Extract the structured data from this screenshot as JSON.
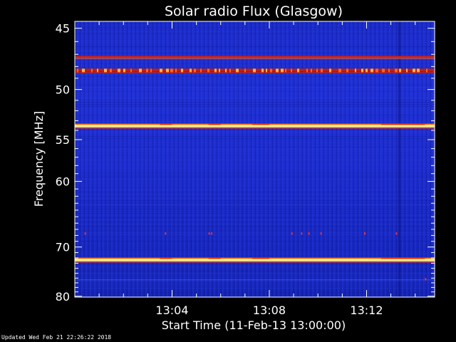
{
  "chart_data": {
    "type": "heatmap",
    "title": "Solar radio Flux (Glasgow)",
    "xlabel": "Start Time (11-Feb-13 13:00:00)",
    "ylabel": "Frequency [MHz]",
    "x_ticks": [
      "13:04",
      "13:08",
      "13:12"
    ],
    "y_ticks": [
      "45",
      "50",
      "55",
      "60",
      "70",
      "80"
    ],
    "y_scale": "reciprocal",
    "x_range_minutes": [
      0,
      14.8
    ],
    "y_range_mhz": [
      44.5,
      80.2
    ],
    "colormap": [
      "#000080",
      "#1e2ad0",
      "#ff3000",
      "#ffd040",
      "#ffffa0"
    ],
    "features": [
      {
        "kind": "steady-band",
        "freq_mhz": 47.2,
        "level": "red"
      },
      {
        "kind": "intermittent-band",
        "freq_mhz": 48.3,
        "level": "orange"
      },
      {
        "kind": "steady-band",
        "freq_mhz": 53.5,
        "level": "yellow"
      },
      {
        "kind": "steady-band",
        "freq_mhz": 72.3,
        "level": "yellow"
      },
      {
        "kind": "faint-line",
        "freq_mhz": 76.3,
        "level": "blue"
      }
    ]
  },
  "footer": {
    "updated": "Updated Wed Feb 21 22:26:22 2018"
  },
  "colors": {
    "background": "#000000",
    "text": "#ffffff",
    "frame": "#ffffff"
  }
}
